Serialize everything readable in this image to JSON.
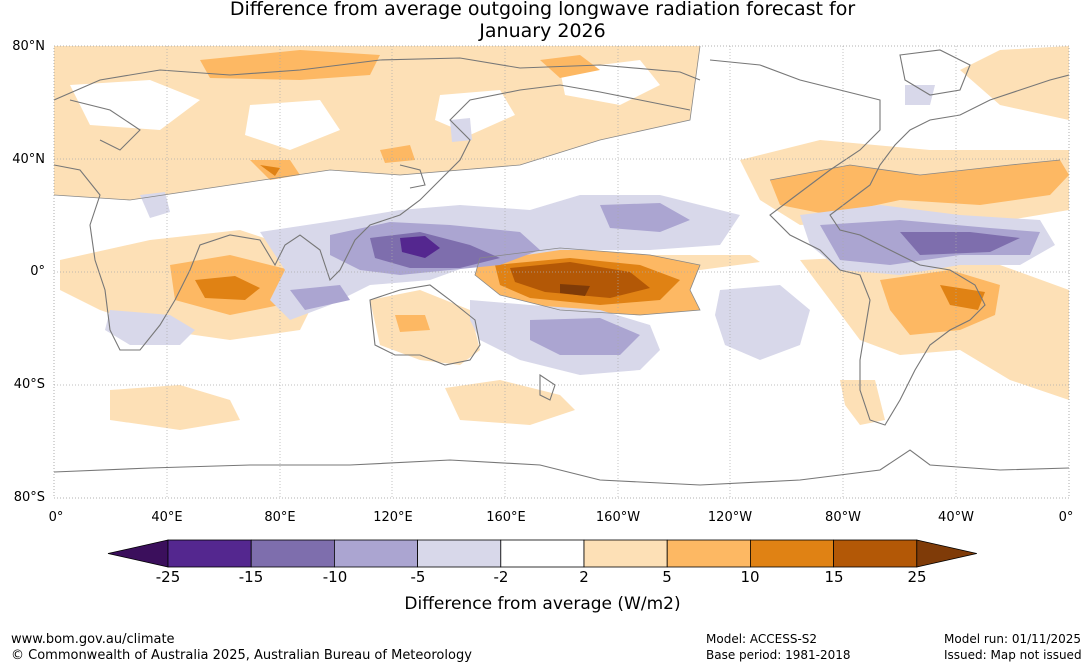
{
  "title_line1": "Difference from average outgoing longwave radiation forecast for",
  "title_line2": "January 2026",
  "lat_labels": [
    "80°N",
    "40°N",
    "0°",
    "40°S",
    "80°S"
  ],
  "lon_labels": [
    "0°",
    "40°E",
    "80°E",
    "120°E",
    "160°E",
    "160°W",
    "120°W",
    "80°W",
    "40°W",
    "0°"
  ],
  "colorbar": {
    "ticks": [
      "-25",
      "-15",
      "-10",
      "-5",
      "-2",
      "2",
      "5",
      "10",
      "15",
      "25"
    ],
    "colors": [
      "#3b0f5c",
      "#54278f",
      "#7e6ead",
      "#aba5d1",
      "#d8d8ea",
      "#ffffff",
      "#fde0b6",
      "#fdb863",
      "#e08214",
      "#b35806",
      "#7f3b08"
    ],
    "label": "Difference from average (W/m2)"
  },
  "footer": {
    "url": "www.bom.gov.au/climate",
    "copyright": "© Commonwealth of Australia 2025, Australian Bureau of Meteorology",
    "model": "Model: ACCESS-S2",
    "base_period": "Base period: 1981-2018",
    "model_run": "Model run: 01/11/2025",
    "issued": "Issued: Map not issued"
  }
}
